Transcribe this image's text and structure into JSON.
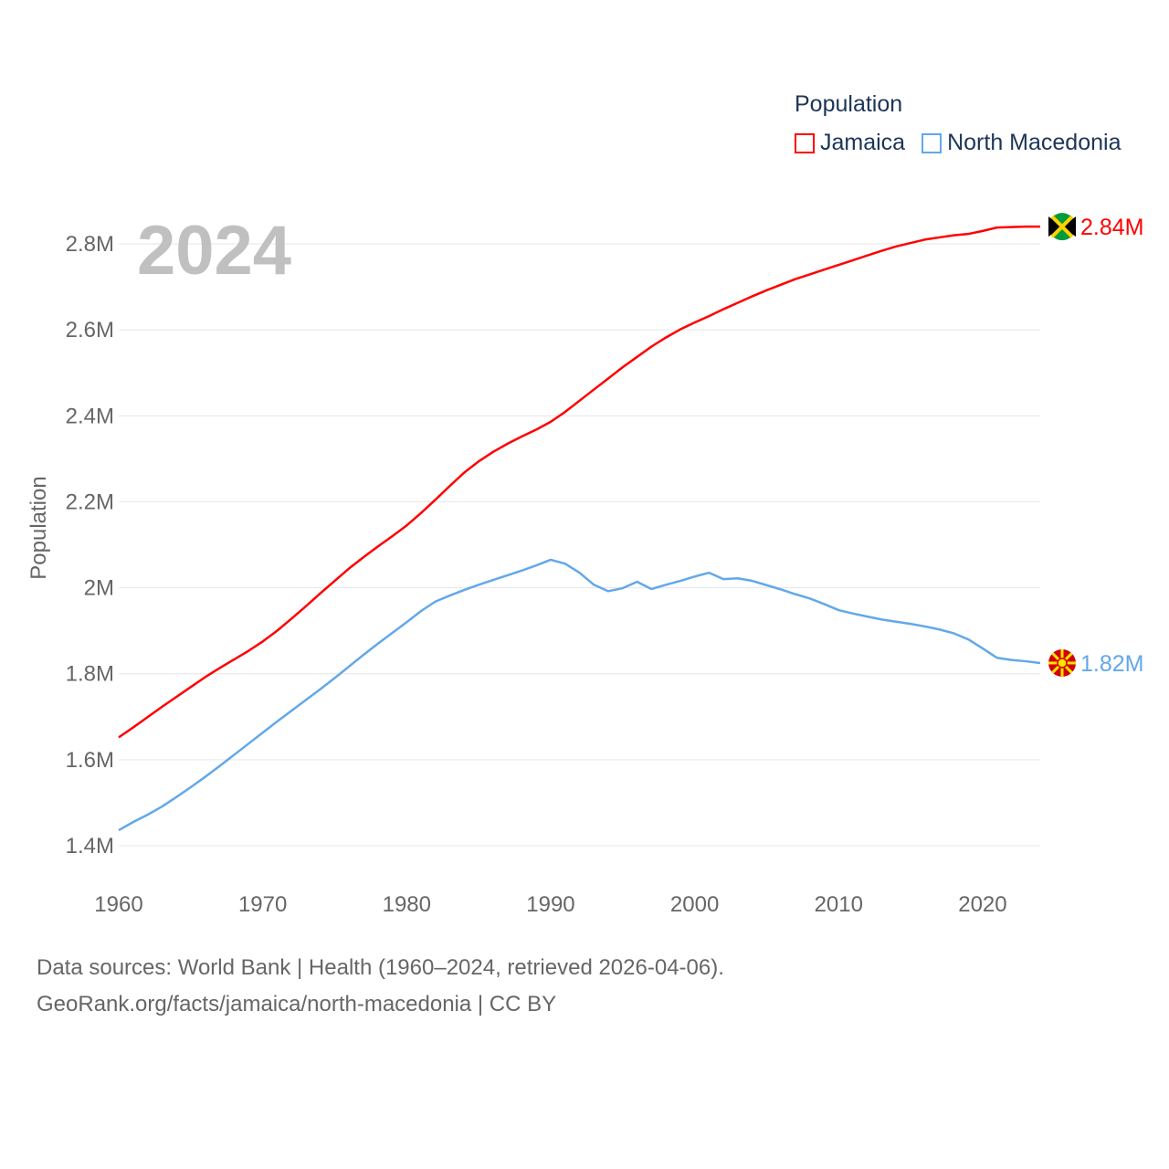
{
  "chart_data": {
    "type": "line",
    "title": "Population",
    "ylabel": "Population",
    "xlabel": "",
    "year_label": "2024",
    "xlim": [
      1960,
      2024
    ],
    "ylim": [
      1.4,
      2.8
    ],
    "x_ticks": [
      "1960",
      "1970",
      "1980",
      "1990",
      "2000",
      "2010",
      "2020"
    ],
    "x_tick_values": [
      1960,
      1970,
      1980,
      1990,
      2000,
      2010,
      2020
    ],
    "y_ticks": [
      "1.4M",
      "1.6M",
      "1.8M",
      "2M",
      "2.2M",
      "2.4M",
      "2.6M",
      "2.8M"
    ],
    "y_tick_values": [
      1.4,
      1.6,
      1.8,
      2.0,
      2.2,
      2.4,
      2.6,
      2.8
    ],
    "grid": true,
    "legend_placement": "top-right",
    "x": [
      1960,
      1961,
      1962,
      1963,
      1964,
      1965,
      1966,
      1967,
      1968,
      1969,
      1970,
      1971,
      1972,
      1973,
      1974,
      1975,
      1976,
      1977,
      1978,
      1979,
      1980,
      1981,
      1982,
      1983,
      1984,
      1985,
      1986,
      1987,
      1988,
      1989,
      1990,
      1991,
      1992,
      1993,
      1994,
      1995,
      1996,
      1997,
      1998,
      1999,
      2000,
      2001,
      2002,
      2003,
      2004,
      2005,
      2006,
      2007,
      2008,
      2009,
      2010,
      2011,
      2012,
      2013,
      2014,
      2015,
      2016,
      2017,
      2018,
      2019,
      2020,
      2021,
      2022,
      2023,
      2024
    ],
    "series": [
      {
        "name": "Jamaica",
        "color": "#ff0000",
        "end_label": "2.84M",
        "values": [
          1.652,
          1.675,
          1.699,
          1.723,
          1.746,
          1.769,
          1.792,
          1.813,
          1.833,
          1.853,
          1.875,
          1.9,
          1.928,
          1.957,
          1.987,
          2.016,
          2.045,
          2.071,
          2.096,
          2.12,
          2.145,
          2.174,
          2.205,
          2.237,
          2.268,
          2.294,
          2.316,
          2.335,
          2.352,
          2.368,
          2.386,
          2.409,
          2.435,
          2.461,
          2.487,
          2.513,
          2.537,
          2.561,
          2.582,
          2.601,
          2.617,
          2.632,
          2.648,
          2.663,
          2.678,
          2.692,
          2.705,
          2.718,
          2.729,
          2.74,
          2.751,
          2.762,
          2.773,
          2.784,
          2.794,
          2.802,
          2.81,
          2.815,
          2.82,
          2.823,
          2.83,
          2.838,
          2.839,
          2.84,
          2.84
        ]
      },
      {
        "name": "North Macedonia",
        "color": "#62a8ea",
        "end_label": "1.82M",
        "values": [
          1.436,
          1.455,
          1.472,
          1.491,
          1.513,
          1.536,
          1.56,
          1.585,
          1.611,
          1.637,
          1.663,
          1.689,
          1.714,
          1.739,
          1.764,
          1.79,
          1.817,
          1.844,
          1.87,
          1.895,
          1.92,
          1.946,
          1.968,
          1.982,
          1.995,
          2.007,
          2.018,
          2.029,
          2.04,
          2.052,
          2.065,
          2.056,
          2.035,
          2.007,
          1.992,
          1.999,
          2.014,
          1.997,
          2.007,
          2.016,
          2.026,
          2.035,
          2.02,
          2.022,
          2.016,
          2.006,
          1.996,
          1.985,
          1.975,
          1.962,
          1.948,
          1.94,
          1.933,
          1.926,
          1.921,
          1.916,
          1.91,
          1.903,
          1.894,
          1.88,
          1.859,
          1.837,
          1.832,
          1.829,
          1.825
        ]
      }
    ]
  },
  "footer": {
    "line1": "Data sources: World Bank | Health (1960–2024, retrieved 2026-04-06).",
    "line2": "GeoRank.org/facts/jamaica/north-macedonia | CC BY"
  }
}
